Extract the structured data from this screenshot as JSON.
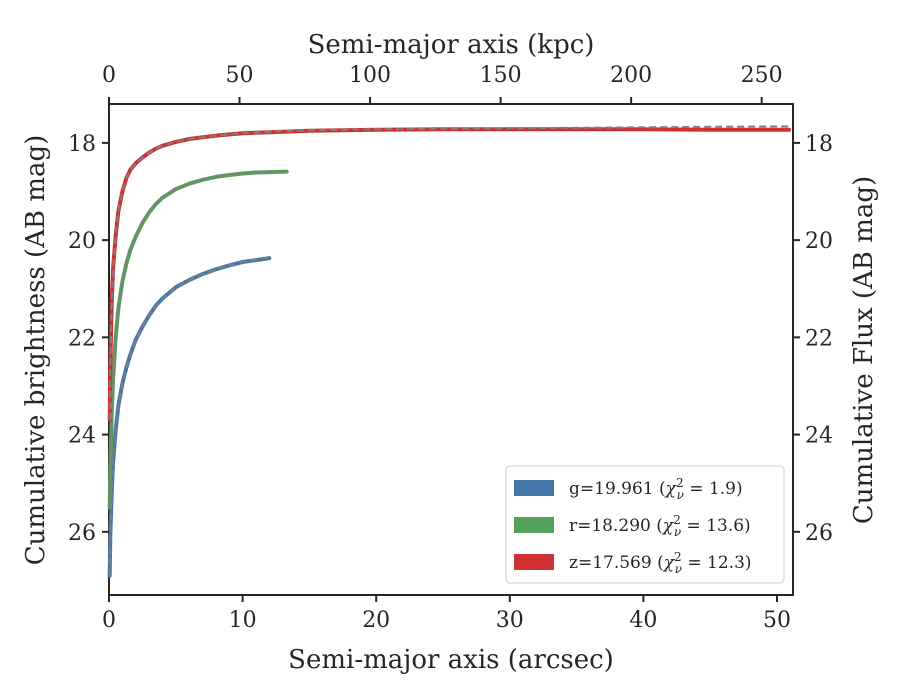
{
  "chart_data": {
    "type": "line",
    "xlabel": "Semi-major axis (arcsec)",
    "top_xlabel": "Semi-major axis (kpc)",
    "ylabel": "Cumulative brightness (AB mag)",
    "right_ylabel": "Cumulative Flux (AB mag)",
    "xlim": [
      0,
      51.2
    ],
    "ylim": [
      27.3,
      17.2
    ],
    "y_inverted": true,
    "top_xlim": [
      0,
      262
    ],
    "x_ticks": [
      "0",
      "10",
      "20",
      "30",
      "40",
      "50"
    ],
    "top_x_ticks": [
      "0",
      "50",
      "100",
      "150",
      "200",
      "250"
    ],
    "y_ticks": [
      "18",
      "20",
      "22",
      "24",
      "26"
    ],
    "grid": false,
    "legend_position": "lower-right",
    "legend": [
      {
        "base": "g=19.961",
        "chi": "1.9",
        "color": "#4477aa"
      },
      {
        "base": "r=18.290",
        "chi": "13.6",
        "color": "#55a05a"
      },
      {
        "base": "z=17.569",
        "chi": "12.3",
        "color": "#d03030"
      }
    ],
    "series": [
      {
        "color": "#4477aa",
        "x": [
          0.05,
          0.1,
          0.2,
          0.3,
          0.5,
          0.7,
          1,
          1.3,
          1.6,
          2,
          2.5,
          3,
          3.5,
          4,
          5,
          6,
          7,
          8,
          9,
          10,
          11,
          12
        ],
        "y": [
          26.9,
          26.1,
          25.2,
          24.6,
          23.9,
          23.4,
          22.95,
          22.62,
          22.35,
          22.05,
          21.78,
          21.55,
          21.35,
          21.2,
          20.97,
          20.82,
          20.7,
          20.6,
          20.52,
          20.45,
          20.41,
          20.37
        ]
      },
      {
        "color": "#55a05a",
        "x": [
          0.05,
          0.1,
          0.2,
          0.3,
          0.5,
          0.7,
          1,
          1.3,
          1.6,
          2,
          2.5,
          3,
          3.5,
          4,
          5,
          6,
          7,
          8,
          9,
          10,
          11,
          12,
          13.3
        ],
        "y": [
          25.5,
          24.7,
          23.6,
          22.9,
          22.0,
          21.4,
          20.85,
          20.48,
          20.2,
          19.93,
          19.65,
          19.43,
          19.26,
          19.13,
          18.95,
          18.84,
          18.76,
          18.7,
          18.66,
          18.63,
          18.61,
          18.6,
          18.59
        ]
      },
      {
        "color": "#d03030",
        "x": [
          0.05,
          0.1,
          0.2,
          0.3,
          0.5,
          0.7,
          1,
          1.3,
          1.6,
          2,
          2.5,
          3,
          3.5,
          4,
          5,
          6,
          8,
          10,
          12,
          15,
          20,
          25,
          30,
          35,
          40,
          45,
          50,
          50.9
        ],
        "y": [
          23.7,
          22.6,
          21.3,
          20.6,
          19.9,
          19.4,
          19.0,
          18.72,
          18.55,
          18.42,
          18.3,
          18.2,
          18.12,
          18.06,
          17.98,
          17.92,
          17.85,
          17.8,
          17.78,
          17.75,
          17.73,
          17.72,
          17.72,
          17.72,
          17.72,
          17.73,
          17.73,
          17.73
        ]
      }
    ],
    "model_curves": [
      {
        "color": "#7f7f7f",
        "x": [
          0.05,
          0.1,
          0.2,
          0.3,
          0.5,
          0.7,
          1,
          1.3,
          1.6,
          2,
          2.5,
          3,
          3.5,
          4,
          5,
          6,
          7,
          8,
          9,
          10,
          11,
          12
        ],
        "y": [
          26.9,
          26.1,
          25.2,
          24.6,
          23.9,
          23.4,
          22.95,
          22.62,
          22.35,
          22.05,
          21.78,
          21.55,
          21.35,
          21.2,
          20.97,
          20.82,
          20.7,
          20.6,
          20.52,
          20.45,
          20.4,
          20.36
        ]
      },
      {
        "color": "#7f7f7f",
        "x": [
          0.05,
          0.1,
          0.2,
          0.3,
          0.5,
          0.7,
          1,
          1.3,
          1.6,
          2,
          2.5,
          3,
          3.5,
          4,
          5,
          6,
          7,
          8,
          9,
          10,
          11,
          12,
          13.3
        ],
        "y": [
          25.5,
          24.7,
          23.6,
          22.9,
          22.0,
          21.4,
          20.85,
          20.48,
          20.2,
          19.93,
          19.65,
          19.43,
          19.26,
          19.13,
          18.95,
          18.84,
          18.76,
          18.7,
          18.66,
          18.63,
          18.61,
          18.6,
          18.59
        ]
      },
      {
        "color": "#7f7f7f",
        "x": [
          0.05,
          0.1,
          0.2,
          0.3,
          0.5,
          0.7,
          1,
          1.3,
          1.6,
          2,
          2.5,
          3,
          3.5,
          4,
          5,
          6,
          8,
          10,
          12,
          15,
          20,
          25,
          30,
          35,
          40,
          45,
          50,
          50.9
        ],
        "y": [
          23.7,
          22.6,
          21.3,
          20.6,
          19.9,
          19.4,
          19.0,
          18.72,
          18.55,
          18.42,
          18.3,
          18.2,
          18.12,
          18.06,
          17.98,
          17.92,
          17.85,
          17.8,
          17.77,
          17.74,
          17.72,
          17.71,
          17.7,
          17.69,
          17.68,
          17.67,
          17.66,
          17.66
        ]
      }
    ]
  }
}
